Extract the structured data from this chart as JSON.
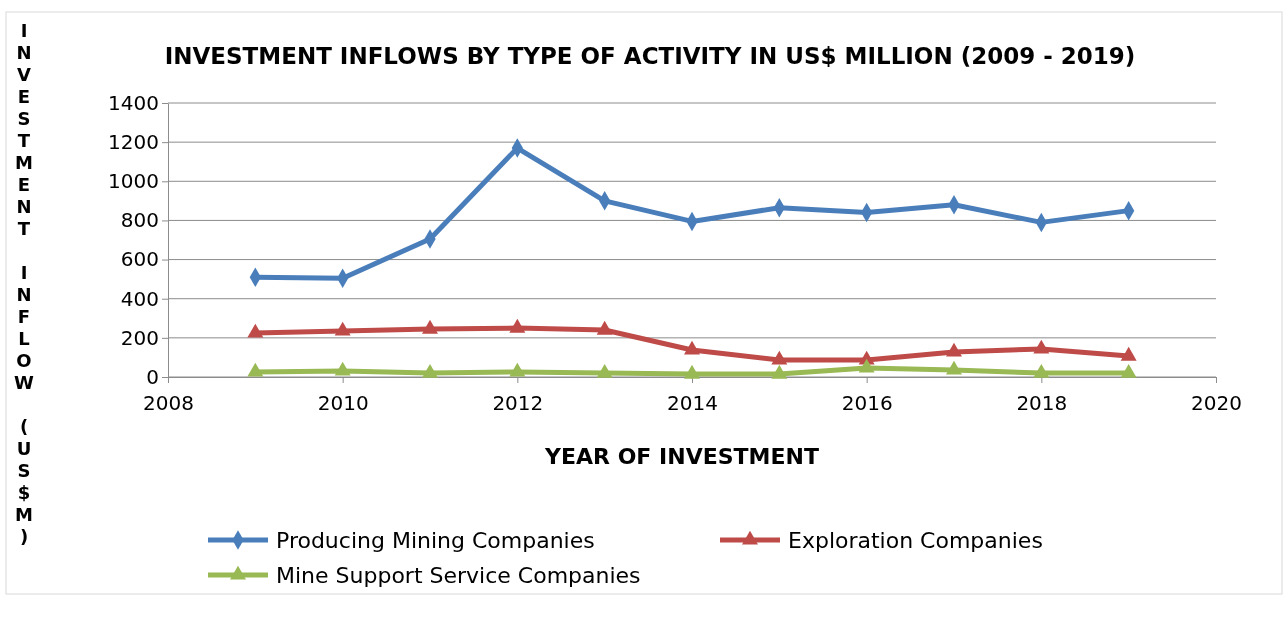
{
  "chart_data": {
    "type": "line",
    "title": "INVESTMENT INFLOWS BY TYPE OF ACTIVITY IN US$ MILLION (2009 - 2019)",
    "xlabel": "YEAR OF INVESTMENT",
    "ylabel": "INVESTMENT  INFLOW  (US$M)",
    "x": [
      2009,
      2010,
      2011,
      2012,
      2013,
      2014,
      2015,
      2016,
      2017,
      2018,
      2019
    ],
    "series": [
      {
        "name": "Producing Mining Companies",
        "color": "#4a7ebb",
        "marker": "diamond",
        "values": [
          510,
          505,
          705,
          1170,
          900,
          795,
          865,
          840,
          880,
          790,
          850
        ]
      },
      {
        "name": "Exploration Companies",
        "color": "#be4b48",
        "marker": "triangle",
        "values": [
          225,
          235,
          245,
          250,
          240,
          138,
          87,
          87,
          128,
          143,
          107
        ]
      },
      {
        "name": "Mine Support Service Companies",
        "color": "#98b954",
        "marker": "triangle",
        "values": [
          26,
          31,
          20,
          26,
          20,
          15,
          15,
          46,
          36,
          20,
          20
        ]
      }
    ],
    "xlim": [
      2008,
      2020
    ],
    "xticks": [
      2008,
      2010,
      2012,
      2014,
      2016,
      2018,
      2020
    ],
    "ylim": [
      0,
      1400
    ],
    "yticks": [
      0,
      200,
      400,
      600,
      800,
      1000,
      1200,
      1400
    ],
    "grid": "y",
    "legend": "bottom",
    "line_style": "solid"
  }
}
